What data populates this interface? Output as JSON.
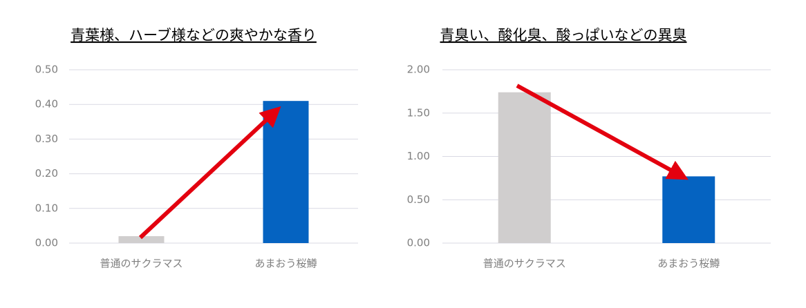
{
  "chart_data": [
    {
      "type": "bar",
      "title": "青葉様、ハーブ様などの爽やかな香り",
      "categories": [
        "普通のサクラマス",
        "あまおう桜鱒"
      ],
      "values": [
        0.02,
        0.41
      ],
      "colors": [
        "#d0cece",
        "#0563c1"
      ],
      "ylim": [
        0,
        0.5
      ],
      "yticks": [
        {
          "value": 0,
          "label": "0.00"
        },
        {
          "value": 0.1,
          "label": "0.10"
        },
        {
          "value": 0.2,
          "label": "0.20"
        },
        {
          "value": 0.3,
          "label": "0.30"
        },
        {
          "value": 0.4,
          "label": "0.40"
        },
        {
          "value": 0.5,
          "label": "0.50"
        }
      ],
      "grid": true
    },
    {
      "type": "bar",
      "title": "青臭い、酸化臭、酸っぱいなどの異臭",
      "categories": [
        "普通のサクラマス",
        "あまおう桜鱒"
      ],
      "values": [
        1.74,
        0.77
      ],
      "colors": [
        "#d0cece",
        "#0563c1"
      ],
      "ylim": [
        0,
        2
      ],
      "yticks": [
        {
          "value": 0,
          "label": "0.00"
        },
        {
          "value": 0.5,
          "label": "0.50"
        },
        {
          "value": 1,
          "label": "1.00"
        },
        {
          "value": 1.5,
          "label": "1.50"
        },
        {
          "value": 2,
          "label": "2.00"
        }
      ],
      "grid": true
    }
  ]
}
